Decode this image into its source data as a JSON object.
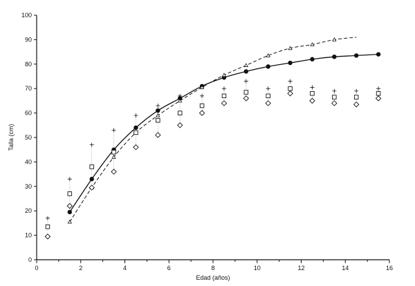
{
  "chart_data": {
    "type": "scatter",
    "title": "",
    "xlabel": "Edad (años)",
    "ylabel": "Talla (cm)",
    "xlim": [
      0,
      16
    ],
    "ylim": [
      0,
      100
    ],
    "xticks": [
      0,
      2,
      4,
      6,
      8,
      10,
      12,
      14,
      16
    ],
    "yticks": [
      0,
      10,
      20,
      30,
      40,
      50,
      60,
      70,
      80,
      90,
      100
    ],
    "grid": false,
    "legend": "none",
    "series": [
      {
        "marker": "filled-circle",
        "line": "solid",
        "x": [
          1.5,
          2.5,
          3.5,
          4.5,
          5.5,
          6.5,
          7.5,
          8.5,
          9.5,
          10.5,
          11.5,
          12.5,
          13.5,
          14.5,
          15.5
        ],
        "y": [
          19.5,
          33,
          45,
          54,
          61,
          66,
          71,
          74.5,
          77,
          79,
          80.5,
          82,
          83,
          83.5,
          84
        ]
      },
      {
        "marker": "triangle",
        "line": "dashed",
        "x": [
          1.5,
          2.5,
          3.5,
          4.5,
          5.5,
          6.5,
          7.5,
          8.5,
          9.5,
          10.5,
          11.5,
          12.5,
          13.5,
          14.5
        ],
        "y": [
          15.5,
          29.5,
          42,
          52,
          59,
          65,
          70.5,
          75.5,
          79.5,
          83.5,
          86.5,
          88,
          90,
          91
        ],
        "marker_count": 13
      },
      {
        "marker": "plus",
        "line": "none",
        "x": [
          0.5,
          1.5,
          2.5,
          3.5,
          4.5,
          5.5,
          6.5,
          7.5,
          8.5,
          9.5,
          10.5,
          11.5,
          12.5,
          13.5,
          14.5,
          15.5
        ],
        "y": [
          17,
          33,
          47,
          53,
          59,
          63,
          67,
          67,
          70,
          73,
          70,
          73,
          70.5,
          69,
          69,
          70
        ]
      },
      {
        "marker": "open-square",
        "line": "none",
        "x": [
          0.5,
          1.5,
          2.5,
          3.5,
          4.5,
          5.5,
          6.5,
          7.5,
          8.5,
          9.5,
          10.5,
          11.5,
          12.5,
          13.5,
          14.5,
          15.5
        ],
        "y": [
          13.5,
          27,
          38,
          44,
          52,
          57,
          60,
          63,
          67,
          68.5,
          67,
          70,
          68,
          66.5,
          66.5,
          68
        ]
      },
      {
        "marker": "open-diamond",
        "line": "none",
        "x": [
          0.5,
          1.5,
          2.5,
          3.5,
          4.5,
          5.5,
          6.5,
          7.5,
          8.5,
          9.5,
          10.5,
          11.5,
          12.5,
          13.5,
          14.5,
          15.5
        ],
        "y": [
          9.5,
          22,
          29.5,
          36,
          46,
          51,
          55,
          60,
          64,
          66,
          64,
          68,
          65,
          64,
          63.5,
          66
        ]
      }
    ],
    "colors": {
      "ink": "#111111",
      "background": "#ffffff"
    }
  }
}
